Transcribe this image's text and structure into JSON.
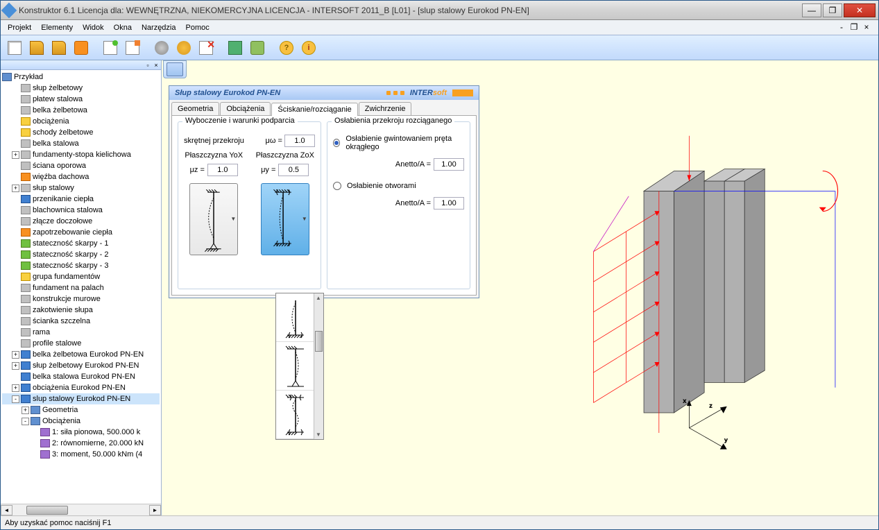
{
  "title": "Konstruktor 6.1 Licencja dla: WEWNĘTRZNA, NIEKOMERCYJNA LICENCJA - INTERSOFT 2011_B [L01] - [slup stalowy Eurokod PN-EN]",
  "menus": [
    "Projekt",
    "Elementy",
    "Widok",
    "Okna",
    "Narzędzia",
    "Pomoc"
  ],
  "tree_root": "Przykład",
  "tree": [
    {
      "l": "słup żelbetowy",
      "d": 1,
      "i": "gry"
    },
    {
      "l": "płatew stalowa",
      "d": 1,
      "i": "gry"
    },
    {
      "l": "belka żelbetowa",
      "d": 1,
      "i": "gry"
    },
    {
      "l": "obciążenia",
      "d": 1,
      "i": "yl"
    },
    {
      "l": "schody żelbetowe",
      "d": 1,
      "i": "yl"
    },
    {
      "l": "belka stalowa",
      "d": 1,
      "i": "gry"
    },
    {
      "l": "fundamenty-stopa kielichowa",
      "d": 1,
      "i": "gry",
      "e": "+"
    },
    {
      "l": "ściana oporowa",
      "d": 1,
      "i": "gry"
    },
    {
      "l": "więźba dachowa",
      "d": 1,
      "i": "orn"
    },
    {
      "l": "słup stalowy",
      "d": 1,
      "i": "gry",
      "e": "+"
    },
    {
      "l": "przenikanie ciepła",
      "d": 1,
      "i": "blu"
    },
    {
      "l": "blachownica stalowa",
      "d": 1,
      "i": "gry"
    },
    {
      "l": "złącze doczołowe",
      "d": 1,
      "i": "gry"
    },
    {
      "l": "zapotrzebowanie ciepła",
      "d": 1,
      "i": "orn"
    },
    {
      "l": "stateczność skarpy - 1",
      "d": 1,
      "i": "grn"
    },
    {
      "l": "stateczność skarpy - 2",
      "d": 1,
      "i": "grn"
    },
    {
      "l": "stateczność skarpy - 3",
      "d": 1,
      "i": "grn"
    },
    {
      "l": "grupa fundamentów",
      "d": 1,
      "i": "yl"
    },
    {
      "l": "fundament na palach",
      "d": 1,
      "i": "gry"
    },
    {
      "l": "konstrukcje murowe",
      "d": 1,
      "i": "gry"
    },
    {
      "l": "zakotwienie słupa",
      "d": 1,
      "i": "gry"
    },
    {
      "l": "ścianka szczelna",
      "d": 1,
      "i": "gry"
    },
    {
      "l": "rama",
      "d": 1,
      "i": "gry"
    },
    {
      "l": "profile stalowe",
      "d": 1,
      "i": "gry"
    },
    {
      "l": "belka żelbetowa Eurokod PN-EN",
      "d": 1,
      "i": "blu",
      "e": "+"
    },
    {
      "l": "słup żelbetowy Eurokod PN-EN",
      "d": 1,
      "i": "blu",
      "e": "+"
    },
    {
      "l": "belka stalowa Eurokod PN-EN",
      "d": 1,
      "i": "blu"
    },
    {
      "l": "obciążenia Eurokod PN-EN",
      "d": 1,
      "i": "blu",
      "e": "+"
    },
    {
      "l": "slup stalowy Eurokod PN-EN",
      "d": 1,
      "i": "blu",
      "e": "-",
      "sel": true
    },
    {
      "l": "Geometria",
      "d": 2,
      "i": "fold",
      "e": "+"
    },
    {
      "l": "Obciążenia",
      "d": 2,
      "i": "fold",
      "e": "-"
    },
    {
      "l": "1: siła pionowa, 500.000 k",
      "d": 3,
      "i": "prp"
    },
    {
      "l": "2: równomierne, 20.000 kN",
      "d": 3,
      "i": "prp"
    },
    {
      "l": "3: moment, 50.000 kNm (4",
      "d": 3,
      "i": "prp"
    }
  ],
  "dialog": {
    "title": "Słup stalowy Eurokod PN-EN",
    "brand_left": "INTER",
    "brand_right": "soft",
    "tabs": [
      "Geometria",
      "Obciążenia",
      "Ściskanie/rozciąganie",
      "Zwichrzenie"
    ],
    "active_tab": 2,
    "grp1_title": "Wyboczenie i warunki podparcia",
    "skretnej_label": "skrętnej przekroju",
    "mu_omega_sym": "μω =",
    "mu_omega_val": "1.0",
    "col_yox": "Płaszczyzna YoX",
    "col_zox": "Płaszczyzna ZoX",
    "mu_z_sym": "μz =",
    "mu_z_val": "1.0",
    "mu_y_sym": "μy =",
    "mu_y_val": "0.5",
    "grp2_title": "Osłabienia przekroju rozciąganego",
    "rad1": "Osłabienie gwintowaniem pręta okrągłego",
    "rad2": "Osłabienie otworami",
    "anetto_label": "Anetto/A =",
    "anetto1": "1.00",
    "anetto2": "1.00"
  },
  "status": "Aby uzyskać pomoc naciśnij F1",
  "viz": {
    "bg": "#ffffe4",
    "column_fill": "#b0b0b0",
    "column_stroke": "#303030",
    "axis_color": "#000000",
    "moment_color": "#ff0000",
    "load_color": "#ff0000",
    "blue_line": "#0000ff"
  }
}
